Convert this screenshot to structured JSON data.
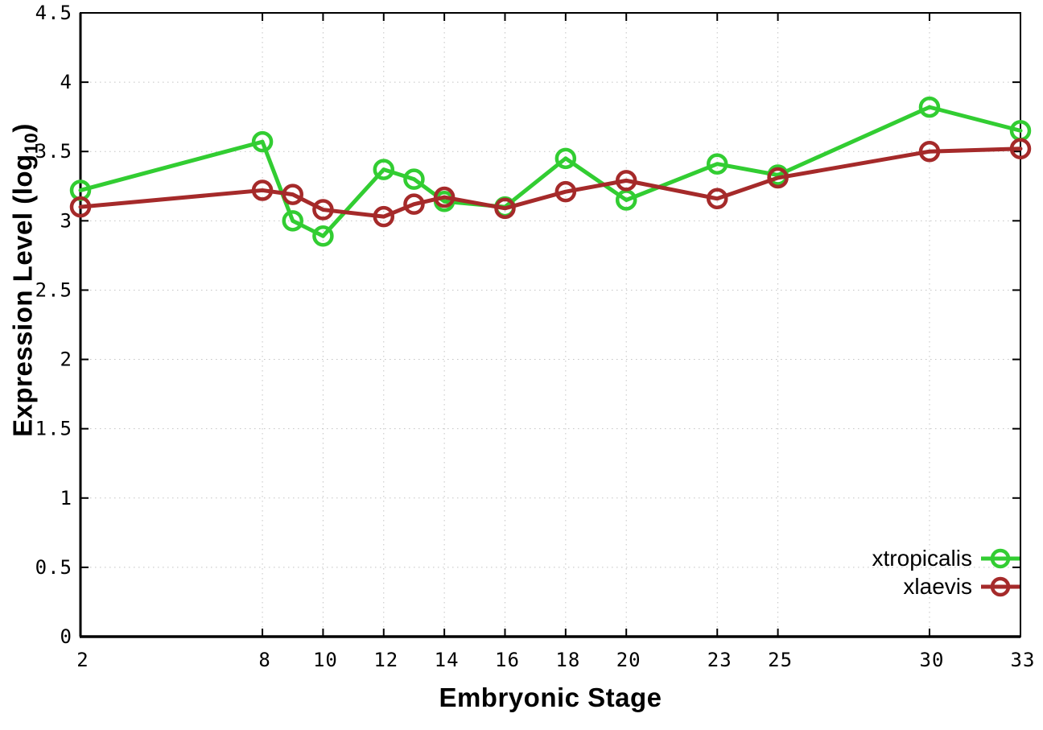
{
  "chart_data": {
    "type": "line",
    "title": "",
    "xlabel": "Embryonic Stage",
    "ylabel": "Expression Level (log10)",
    "ylabel_parts": {
      "prefix": "Expression Level (log",
      "sub": "10",
      "suffix": ")"
    },
    "xlim": [
      2,
      33
    ],
    "ylim": [
      0,
      4.5
    ],
    "xticks": [
      2,
      8,
      10,
      12,
      14,
      16,
      18,
      20,
      23,
      25,
      30,
      33
    ],
    "yticks": [
      0,
      0.5,
      1,
      1.5,
      2,
      2.5,
      3,
      3.5,
      4,
      4.5
    ],
    "grid": true,
    "legend_position": "bottom-right",
    "x": [
      2,
      8,
      9,
      10,
      12,
      13,
      14,
      16,
      18,
      20,
      23,
      25,
      30,
      33
    ],
    "series": [
      {
        "name": "xtropicalis",
        "color": "#32CD32",
        "values": [
          3.22,
          3.57,
          3.0,
          2.89,
          3.37,
          3.3,
          3.14,
          3.1,
          3.45,
          3.15,
          3.41,
          3.33,
          3.82,
          3.65
        ]
      },
      {
        "name": "xlaevis",
        "color": "#A52A2A",
        "values": [
          3.1,
          3.22,
          3.19,
          3.08,
          3.03,
          3.12,
          3.17,
          3.09,
          3.21,
          3.29,
          3.16,
          3.31,
          3.5,
          3.52
        ]
      }
    ],
    "style": {
      "grid_color": "#c4c4c4",
      "axis_color": "#000000",
      "background": "#ffffff",
      "line_width": 5,
      "marker_radius": 11
    }
  }
}
